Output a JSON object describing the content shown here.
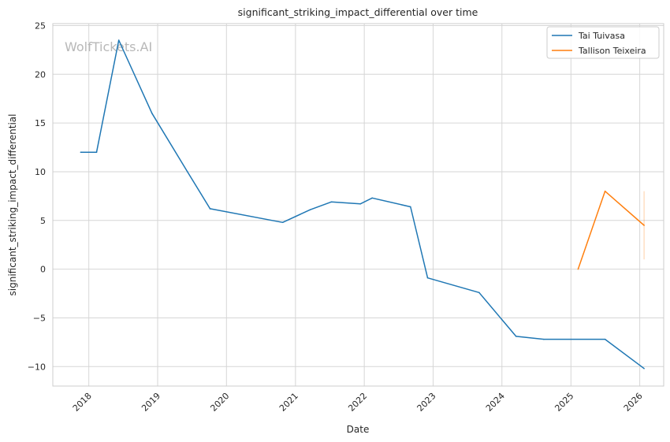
{
  "chart_data": {
    "type": "line",
    "title": "significant_striking_impact_differential over time",
    "xlabel": "Date",
    "ylabel": "significant_striking_impact_differential",
    "watermark": "WolfTickets.AI",
    "x_ticks": [
      "2018",
      "2019",
      "2020",
      "2021",
      "2022",
      "2023",
      "2024",
      "2025",
      "2026"
    ],
    "y_ticks": [
      "−10",
      "−5",
      "0",
      "5",
      "10",
      "15",
      "20",
      "25"
    ],
    "y_tick_values": [
      -10,
      -5,
      0,
      5,
      10,
      15,
      20,
      25
    ],
    "ylim": [
      -12,
      25.2
    ],
    "xlim": [
      "2017-06-24",
      "2026-05-08"
    ],
    "grid": true,
    "legend_position": "top-right",
    "series": [
      {
        "name": "Tai Tuivasa",
        "color": "#1f77b4",
        "points": [
          {
            "x": "2017-11-19",
            "y": 12.0
          },
          {
            "x": "2018-02-11",
            "y": 12.0
          },
          {
            "x": "2018-06-09",
            "y": 23.5
          },
          {
            "x": "2018-12-02",
            "y": 16.0
          },
          {
            "x": "2019-06-08",
            "y": 10.0
          },
          {
            "x": "2019-10-06",
            "y": 6.2
          },
          {
            "x": "2020-10-25",
            "y": 4.8
          },
          {
            "x": "2021-03-20",
            "y": 6.1
          },
          {
            "x": "2021-07-10",
            "y": 6.9
          },
          {
            "x": "2021-12-11",
            "y": 6.7
          },
          {
            "x": "2022-02-12",
            "y": 7.3
          },
          {
            "x": "2022-09-03",
            "y": 6.4
          },
          {
            "x": "2022-12-03",
            "y": -0.9
          },
          {
            "x": "2023-09-02",
            "y": -2.4
          },
          {
            "x": "2024-03-16",
            "y": -6.9
          },
          {
            "x": "2024-08-10",
            "y": -7.2
          },
          {
            "x": "2025-07-01",
            "y": -7.2
          },
          {
            "x": "2026-01-24",
            "y": -10.2
          }
        ]
      },
      {
        "name": "Tallison Teixeira",
        "color": "#ff7f0e",
        "points": [
          {
            "x": "2025-02-08",
            "y": 0.0
          },
          {
            "x": "2025-07-01",
            "y": 8.0
          },
          {
            "x": "2026-01-24",
            "y": 4.5
          }
        ],
        "range_band": {
          "x": "2026-01-24",
          "low": 1.0,
          "high": 8.0
        }
      }
    ]
  }
}
